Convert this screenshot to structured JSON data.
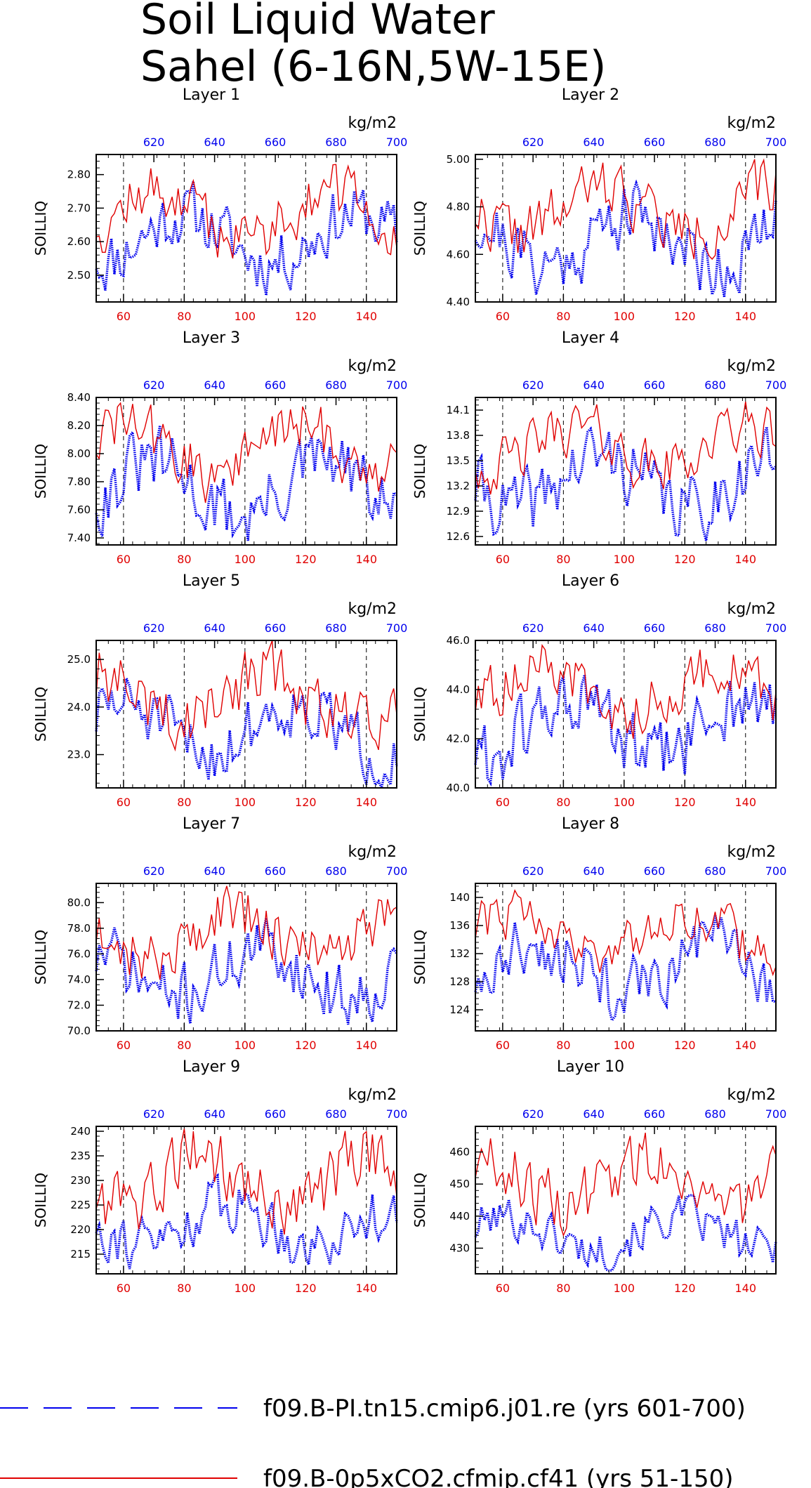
{
  "title_lines": [
    "Soil Liquid Water",
    "Sahel (6-16N,5W-15E)"
  ],
  "legend": [
    {
      "label": "f09.B-PI.tn15.cmip6.j01.re (yrs 601-700)",
      "color": "#0000ee",
      "style": "dashed"
    },
    {
      "label": "f09.B-0p5xCO2.cfmip.cf41 (yrs 51-150)",
      "color": "#e00000",
      "style": "solid"
    }
  ],
  "chart_data": [
    {
      "type": "line",
      "title": "Layer 1",
      "ylabel": "SOILLIQ",
      "unit": "kg/m2",
      "ylim": [
        2.42,
        2.86
      ],
      "yticks": [
        "2.50",
        "2.60",
        "2.70",
        "2.80"
      ],
      "xlim_bottom": [
        51,
        150
      ],
      "xticks_bottom": [
        "60",
        "80",
        "100",
        "120",
        "140"
      ],
      "xlim_top": [
        601,
        700
      ],
      "xticks_top": [
        "620",
        "640",
        "660",
        "680",
        "700"
      ],
      "series": [
        {
          "axis": "top",
          "color": "#0000ee",
          "style": "dotted",
          "mean": 2.62,
          "amp": 0.07,
          "min": 2.44,
          "max": 2.78,
          "seed": 11
        },
        {
          "axis": "bottom",
          "color": "#e00000",
          "style": "solid",
          "mean": 2.68,
          "amp": 0.05,
          "min": 2.55,
          "max": 2.83,
          "seed": 12
        }
      ]
    },
    {
      "type": "line",
      "title": "Layer 2",
      "ylabel": "SOILLIQ",
      "unit": "kg/m2",
      "ylim": [
        4.4,
        5.02
      ],
      "yticks": [
        "4.40",
        "4.60",
        "4.80",
        "5.00"
      ],
      "xlim_bottom": [
        51,
        150
      ],
      "xticks_bottom": [
        "60",
        "80",
        "100",
        "120",
        "140"
      ],
      "xlim_top": [
        601,
        700
      ],
      "xticks_top": [
        "620",
        "640",
        "660",
        "680",
        "700"
      ],
      "series": [
        {
          "axis": "top",
          "color": "#0000ee",
          "style": "dotted",
          "mean": 4.66,
          "amp": 0.09,
          "min": 4.42,
          "max": 4.9,
          "seed": 21
        },
        {
          "axis": "bottom",
          "color": "#e00000",
          "style": "solid",
          "mean": 4.74,
          "amp": 0.07,
          "min": 4.58,
          "max": 5.0,
          "seed": 22
        }
      ]
    },
    {
      "type": "line",
      "title": "Layer 3",
      "ylabel": "SOILLIQ",
      "unit": "kg/m2",
      "ylim": [
        7.35,
        8.4
      ],
      "yticks": [
        "7.40",
        "7.60",
        "7.80",
        "8.00",
        "8.20",
        "8.40"
      ],
      "xlim_bottom": [
        51,
        150
      ],
      "xticks_bottom": [
        "60",
        "80",
        "100",
        "120",
        "140"
      ],
      "xlim_top": [
        601,
        700
      ],
      "xticks_top": [
        "620",
        "640",
        "660",
        "680",
        "700"
      ],
      "series": [
        {
          "axis": "top",
          "color": "#0000ee",
          "style": "dotted",
          "mean": 7.84,
          "amp": 0.14,
          "min": 7.38,
          "max": 8.2,
          "seed": 31
        },
        {
          "axis": "bottom",
          "color": "#e00000",
          "style": "solid",
          "mean": 7.95,
          "amp": 0.11,
          "min": 7.65,
          "max": 8.36,
          "seed": 32
        }
      ]
    },
    {
      "type": "line",
      "title": "Layer 4",
      "ylabel": "SOILLIQ",
      "unit": "kg/m2",
      "ylim": [
        12.5,
        14.25
      ],
      "yticks": [
        "12.6",
        "12.9",
        "13.2",
        "13.5",
        "13.8",
        "14.1"
      ],
      "xlim_bottom": [
        51,
        150
      ],
      "xticks_bottom": [
        "60",
        "80",
        "100",
        "120",
        "140"
      ],
      "xlim_top": [
        601,
        700
      ],
      "xticks_top": [
        "620",
        "640",
        "660",
        "680",
        "700"
      ],
      "series": [
        {
          "axis": "top",
          "color": "#0000ee",
          "style": "dotted",
          "mean": 13.3,
          "amp": 0.22,
          "min": 12.55,
          "max": 13.9,
          "seed": 41
        },
        {
          "axis": "bottom",
          "color": "#e00000",
          "style": "solid",
          "mean": 13.5,
          "amp": 0.16,
          "min": 13.1,
          "max": 14.2,
          "seed": 42
        }
      ]
    },
    {
      "type": "line",
      "title": "Layer 5",
      "ylabel": "SOILLIQ",
      "unit": "kg/m2",
      "ylim": [
        22.3,
        25.4
      ],
      "yticks": [
        "23.0",
        "24.0",
        "25.0"
      ],
      "xlim_bottom": [
        51,
        150
      ],
      "xticks_bottom": [
        "60",
        "80",
        "100",
        "120",
        "140"
      ],
      "xlim_top": [
        601,
        700
      ],
      "xticks_top": [
        "620",
        "640",
        "660",
        "680",
        "700"
      ],
      "series": [
        {
          "axis": "top",
          "color": "#0000ee",
          "style": "dotted",
          "mean": 23.5,
          "amp": 0.45,
          "min": 22.3,
          "max": 24.6,
          "seed": 51
        },
        {
          "axis": "bottom",
          "color": "#e00000",
          "style": "solid",
          "mean": 23.9,
          "amp": 0.35,
          "min": 23.1,
          "max": 25.4,
          "seed": 52
        }
      ]
    },
    {
      "type": "line",
      "title": "Layer 6",
      "ylabel": "SOILLIQ",
      "unit": "kg/m2",
      "ylim": [
        40.0,
        46.0
      ],
      "yticks": [
        "40.0",
        "42.0",
        "44.0",
        "46.0"
      ],
      "xlim_bottom": [
        51,
        150
      ],
      "xticks_bottom": [
        "60",
        "80",
        "100",
        "120",
        "140"
      ],
      "xlim_top": [
        601,
        700
      ],
      "xticks_top": [
        "620",
        "640",
        "660",
        "680",
        "700"
      ],
      "series": [
        {
          "axis": "top",
          "color": "#0000ee",
          "style": "dotted",
          "mean": 42.4,
          "amp": 0.9,
          "min": 40.2,
          "max": 44.6,
          "seed": 61
        },
        {
          "axis": "bottom",
          "color": "#e00000",
          "style": "solid",
          "mean": 43.5,
          "amp": 0.6,
          "min": 42.0,
          "max": 45.8,
          "seed": 62
        }
      ]
    },
    {
      "type": "line",
      "title": "Layer 7",
      "ylabel": "SOILLIQ",
      "unit": "kg/m2",
      "ylim": [
        70.0,
        81.5
      ],
      "yticks": [
        "70.0",
        "72.0",
        "74.0",
        "76.0",
        "78.0",
        "80.0"
      ],
      "xlim_bottom": [
        51,
        150
      ],
      "xticks_bottom": [
        "60",
        "80",
        "100",
        "120",
        "140"
      ],
      "xlim_top": [
        601,
        700
      ],
      "xticks_top": [
        "620",
        "640",
        "660",
        "680",
        "700"
      ],
      "series": [
        {
          "axis": "top",
          "color": "#0000ee",
          "style": "dotted",
          "mean": 75.2,
          "amp": 1.7,
          "min": 70.5,
          "max": 78.8,
          "seed": 71
        },
        {
          "axis": "bottom",
          "color": "#e00000",
          "style": "solid",
          "mean": 77.0,
          "amp": 1.2,
          "min": 74.0,
          "max": 81.3,
          "seed": 72
        }
      ]
    },
    {
      "type": "line",
      "title": "Layer 8",
      "ylabel": "SOILLIQ",
      "unit": "kg/m2",
      "ylim": [
        121.0,
        142.0
      ],
      "yticks": [
        "124",
        "128",
        "132",
        "136",
        "140"
      ],
      "xlim_bottom": [
        51,
        150
      ],
      "xticks_bottom": [
        "60",
        "80",
        "100",
        "120",
        "140"
      ],
      "xlim_top": [
        601,
        700
      ],
      "xticks_top": [
        "620",
        "640",
        "660",
        "680",
        "700"
      ],
      "series": [
        {
          "axis": "top",
          "color": "#0000ee",
          "style": "dotted",
          "mean": 130.0,
          "amp": 3.0,
          "min": 122.5,
          "max": 137.5,
          "seed": 81
        },
        {
          "axis": "bottom",
          "color": "#e00000",
          "style": "solid",
          "mean": 133.5,
          "amp": 2.2,
          "min": 129.0,
          "max": 141.0,
          "seed": 82
        }
      ]
    },
    {
      "type": "line",
      "title": "Layer 9",
      "ylabel": "SOILLIQ",
      "unit": "kg/m2",
      "ylim": [
        211.0,
        241.0
      ],
      "yticks": [
        "215",
        "220",
        "225",
        "230",
        "235",
        "240"
      ],
      "xlim_bottom": [
        51,
        150
      ],
      "xticks_bottom": [
        "60",
        "80",
        "100",
        "120",
        "140"
      ],
      "xlim_top": [
        601,
        700
      ],
      "xticks_top": [
        "620",
        "640",
        "660",
        "680",
        "700"
      ],
      "series": [
        {
          "axis": "top",
          "color": "#0000ee",
          "style": "dotted",
          "mean": 222.0,
          "amp": 4.0,
          "min": 212.0,
          "max": 231.0,
          "seed": 91
        },
        {
          "axis": "bottom",
          "color": "#e00000",
          "style": "solid",
          "mean": 225.5,
          "amp": 3.0,
          "min": 219.0,
          "max": 240.5,
          "seed": 92
        }
      ]
    },
    {
      "type": "line",
      "title": "Layer 10",
      "ylabel": "SOILLIQ",
      "unit": "kg/m2",
      "ylim": [
        422.0,
        468.0
      ],
      "yticks": [
        "430",
        "440",
        "450",
        "460"
      ],
      "xlim_bottom": [
        51,
        150
      ],
      "xticks_bottom": [
        "60",
        "80",
        "100",
        "120",
        "140"
      ],
      "xlim_top": [
        601,
        700
      ],
      "xticks_top": [
        "620",
        "640",
        "660",
        "680",
        "700"
      ],
      "series": [
        {
          "axis": "top",
          "color": "#0000ee",
          "style": "dotted",
          "mean": 435.5,
          "amp": 5.0,
          "min": 423.0,
          "max": 446.5,
          "seed": 101
        },
        {
          "axis": "bottom",
          "color": "#e00000",
          "style": "solid",
          "mean": 442.0,
          "amp": 4.0,
          "min": 434.0,
          "max": 466.0,
          "seed": 102
        }
      ]
    }
  ]
}
